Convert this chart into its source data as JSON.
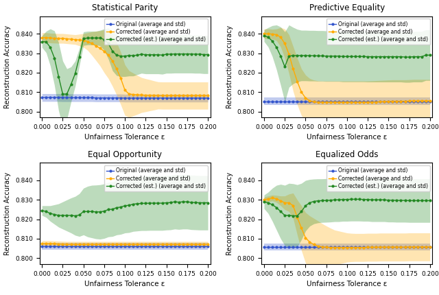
{
  "titles": [
    "Statistical Parity",
    "Predictive Equality",
    "Equal Opportunity",
    "Equalized Odds"
  ],
  "xlabel": "Unfairness Tolerance ε",
  "ylabel": "Reconstruction Accuracy",
  "legend_labels": [
    "Original (average and std)",
    "Corrected (average and std)",
    "Corrected (est.) (average and std)"
  ],
  "colors": [
    "#3355cc",
    "#ffaa00",
    "#228822"
  ],
  "x_ticks": [
    0.0,
    0.025,
    0.05,
    0.075,
    0.1,
    0.125,
    0.15,
    0.175,
    0.2
  ],
  "ylim": [
    0.797,
    0.849
  ],
  "xlim": [
    -0.003,
    0.203
  ],
  "sp": {
    "x": [
      0.0,
      0.005,
      0.01,
      0.015,
      0.02,
      0.025,
      0.03,
      0.035,
      0.04,
      0.045,
      0.05,
      0.055,
      0.06,
      0.065,
      0.07,
      0.075,
      0.08,
      0.085,
      0.09,
      0.095,
      0.1,
      0.105,
      0.11,
      0.115,
      0.12,
      0.125,
      0.13,
      0.135,
      0.14,
      0.145,
      0.15,
      0.155,
      0.16,
      0.165,
      0.17,
      0.175,
      0.18,
      0.185,
      0.19,
      0.195,
      0.2
    ],
    "orig_mean": [
      0.8072,
      0.8072,
      0.8072,
      0.8072,
      0.8072,
      0.8071,
      0.8071,
      0.8071,
      0.8071,
      0.8071,
      0.8071,
      0.8071,
      0.8071,
      0.807,
      0.807,
      0.807,
      0.807,
      0.807,
      0.807,
      0.807,
      0.8069,
      0.8069,
      0.8069,
      0.8069,
      0.8069,
      0.8069,
      0.8069,
      0.8069,
      0.8069,
      0.8069,
      0.8069,
      0.8069,
      0.8069,
      0.8069,
      0.8069,
      0.8069,
      0.8069,
      0.8069,
      0.8069,
      0.8069,
      0.8069
    ],
    "orig_std": [
      0.002,
      0.002,
      0.002,
      0.002,
      0.002,
      0.002,
      0.002,
      0.002,
      0.002,
      0.002,
      0.002,
      0.002,
      0.002,
      0.002,
      0.002,
      0.002,
      0.002,
      0.002,
      0.002,
      0.002,
      0.002,
      0.002,
      0.002,
      0.002,
      0.002,
      0.002,
      0.002,
      0.002,
      0.002,
      0.002,
      0.002,
      0.002,
      0.002,
      0.002,
      0.002,
      0.002,
      0.002,
      0.002,
      0.002,
      0.002,
      0.002
    ],
    "corr_mean": [
      0.838,
      0.838,
      0.8378,
      0.8377,
      0.8376,
      0.8376,
      0.8374,
      0.8372,
      0.837,
      0.8368,
      0.8366,
      0.836,
      0.835,
      0.8338,
      0.8325,
      0.831,
      0.829,
      0.826,
      0.822,
      0.817,
      0.811,
      0.809,
      0.8088,
      0.8086,
      0.8085,
      0.8084,
      0.8084,
      0.8083,
      0.8083,
      0.8082,
      0.8082,
      0.8082,
      0.8082,
      0.8082,
      0.8082,
      0.8082,
      0.8082,
      0.8082,
      0.8082,
      0.8082,
      0.8082
    ],
    "corr_std": [
      0.0025,
      0.0025,
      0.0025,
      0.0025,
      0.0025,
      0.0025,
      0.0025,
      0.0025,
      0.0025,
      0.003,
      0.0035,
      0.0045,
      0.006,
      0.0075,
      0.009,
      0.011,
      0.012,
      0.013,
      0.0135,
      0.0135,
      0.013,
      0.012,
      0.011,
      0.01,
      0.009,
      0.0085,
      0.008,
      0.0075,
      0.007,
      0.007,
      0.007,
      0.007,
      0.007,
      0.007,
      0.007,
      0.007,
      0.007,
      0.007,
      0.007,
      0.007,
      0.007
    ],
    "est_mean": [
      0.836,
      0.8358,
      0.833,
      0.8275,
      0.818,
      0.809,
      0.809,
      0.814,
      0.8195,
      0.828,
      0.8375,
      0.8378,
      0.8378,
      0.8378,
      0.8378,
      0.837,
      0.835,
      0.831,
      0.829,
      0.8285,
      0.8285,
      0.8288,
      0.8288,
      0.829,
      0.8295,
      0.8292,
      0.8292,
      0.8292,
      0.8292,
      0.829,
      0.8295,
      0.8295,
      0.8296,
      0.8296,
      0.8296,
      0.8296,
      0.8296,
      0.8295,
      0.8295,
      0.8293,
      0.8293
    ],
    "est_std": [
      0.003,
      0.0055,
      0.0095,
      0.014,
      0.0175,
      0.017,
      0.013,
      0.009,
      0.0065,
      0.0045,
      0.0035,
      0.0035,
      0.0035,
      0.0035,
      0.004,
      0.0055,
      0.008,
      0.01,
      0.0105,
      0.0105,
      0.0105,
      0.0105,
      0.0105,
      0.01,
      0.0098,
      0.0098,
      0.0098,
      0.0098,
      0.0098,
      0.0098,
      0.0098,
      0.0098,
      0.0098,
      0.0098,
      0.0098,
      0.0098,
      0.0098,
      0.0098,
      0.0098,
      0.0098,
      0.0098
    ]
  },
  "pe": {
    "x": [
      0.0,
      0.005,
      0.01,
      0.015,
      0.02,
      0.025,
      0.03,
      0.035,
      0.04,
      0.045,
      0.05,
      0.055,
      0.06,
      0.065,
      0.07,
      0.075,
      0.08,
      0.085,
      0.09,
      0.095,
      0.1,
      0.105,
      0.11,
      0.115,
      0.12,
      0.125,
      0.13,
      0.135,
      0.14,
      0.145,
      0.15,
      0.155,
      0.16,
      0.165,
      0.17,
      0.175,
      0.18,
      0.185,
      0.19,
      0.195,
      0.2
    ],
    "orig_mean": [
      0.8053,
      0.8053,
      0.8053,
      0.8053,
      0.8053,
      0.8053,
      0.8053,
      0.8053,
      0.8053,
      0.8053,
      0.8053,
      0.8053,
      0.8053,
      0.8053,
      0.8053,
      0.8053,
      0.8053,
      0.8053,
      0.8053,
      0.8053,
      0.8053,
      0.8053,
      0.8053,
      0.8053,
      0.8053,
      0.8053,
      0.8053,
      0.8053,
      0.8053,
      0.8053,
      0.8053,
      0.8053,
      0.8053,
      0.8053,
      0.8053,
      0.8053,
      0.8053,
      0.8053,
      0.8053,
      0.8053,
      0.8053
    ],
    "orig_std": [
      0.002,
      0.002,
      0.002,
      0.002,
      0.002,
      0.002,
      0.002,
      0.002,
      0.002,
      0.002,
      0.002,
      0.002,
      0.002,
      0.002,
      0.002,
      0.002,
      0.002,
      0.002,
      0.002,
      0.002,
      0.002,
      0.002,
      0.002,
      0.002,
      0.002,
      0.002,
      0.002,
      0.002,
      0.002,
      0.002,
      0.002,
      0.002,
      0.002,
      0.002,
      0.002,
      0.002,
      0.002,
      0.002,
      0.002,
      0.002,
      0.002
    ],
    "corr_mean": [
      0.84,
      0.84,
      0.8398,
      0.8395,
      0.8382,
      0.835,
      0.8295,
      0.822,
      0.8155,
      0.81,
      0.807,
      0.8055,
      0.805,
      0.8048,
      0.8047,
      0.8047,
      0.8047,
      0.8047,
      0.8047,
      0.8047,
      0.8047,
      0.8047,
      0.8047,
      0.8047,
      0.8047,
      0.8047,
      0.8048,
      0.8049,
      0.805,
      0.8051,
      0.8052,
      0.8053,
      0.8053,
      0.8053,
      0.8053,
      0.8054,
      0.8055,
      0.8055,
      0.8055,
      0.8055,
      0.8055
    ],
    "corr_std": [
      0.0025,
      0.0025,
      0.0025,
      0.003,
      0.005,
      0.0075,
      0.01,
      0.0115,
      0.012,
      0.012,
      0.0118,
      0.0115,
      0.0112,
      0.011,
      0.011,
      0.011,
      0.011,
      0.011,
      0.011,
      0.011,
      0.011,
      0.011,
      0.011,
      0.011,
      0.011,
      0.011,
      0.011,
      0.011,
      0.011,
      0.011,
      0.011,
      0.011,
      0.011,
      0.011,
      0.011,
      0.011,
      0.011,
      0.011,
      0.011,
      0.011,
      0.011
    ],
    "est_mean": [
      0.839,
      0.8382,
      0.8362,
      0.833,
      0.8285,
      0.823,
      0.8285,
      0.8288,
      0.8288,
      0.8288,
      0.8288,
      0.8287,
      0.8287,
      0.8286,
      0.8286,
      0.8285,
      0.8285,
      0.8285,
      0.8285,
      0.8283,
      0.8283,
      0.8283,
      0.8283,
      0.8283,
      0.8283,
      0.8282,
      0.8282,
      0.8282,
      0.8282,
      0.8282,
      0.8282,
      0.8282,
      0.8282,
      0.8282,
      0.828,
      0.828,
      0.8282,
      0.8282,
      0.8282,
      0.829,
      0.829
    ],
    "est_std": [
      0.003,
      0.005,
      0.008,
      0.0115,
      0.015,
      0.018,
      0.016,
      0.0145,
      0.0135,
      0.013,
      0.013,
      0.013,
      0.013,
      0.013,
      0.013,
      0.013,
      0.013,
      0.013,
      0.013,
      0.013,
      0.013,
      0.013,
      0.013,
      0.013,
      0.013,
      0.013,
      0.013,
      0.013,
      0.013,
      0.013,
      0.013,
      0.013,
      0.013,
      0.013,
      0.013,
      0.013,
      0.013,
      0.013,
      0.013,
      0.013,
      0.013
    ]
  },
  "eo": {
    "x": [
      0.0,
      0.005,
      0.01,
      0.015,
      0.02,
      0.025,
      0.03,
      0.035,
      0.04,
      0.045,
      0.05,
      0.055,
      0.06,
      0.065,
      0.07,
      0.075,
      0.08,
      0.085,
      0.09,
      0.095,
      0.1,
      0.105,
      0.11,
      0.115,
      0.12,
      0.125,
      0.13,
      0.135,
      0.14,
      0.145,
      0.15,
      0.155,
      0.16,
      0.165,
      0.17,
      0.175,
      0.18,
      0.185,
      0.19,
      0.195,
      0.2
    ],
    "orig_mean": [
      0.806,
      0.806,
      0.806,
      0.806,
      0.806,
      0.806,
      0.806,
      0.806,
      0.806,
      0.806,
      0.806,
      0.806,
      0.806,
      0.806,
      0.806,
      0.806,
      0.806,
      0.806,
      0.806,
      0.806,
      0.806,
      0.806,
      0.806,
      0.806,
      0.806,
      0.806,
      0.806,
      0.806,
      0.806,
      0.806,
      0.806,
      0.806,
      0.806,
      0.806,
      0.806,
      0.806,
      0.806,
      0.806,
      0.806,
      0.806,
      0.806
    ],
    "orig_std": [
      0.0018,
      0.0018,
      0.0018,
      0.0018,
      0.0018,
      0.0018,
      0.0018,
      0.0018,
      0.0018,
      0.0018,
      0.0018,
      0.0018,
      0.0018,
      0.0018,
      0.0018,
      0.0018,
      0.0018,
      0.0018,
      0.0018,
      0.0018,
      0.0018,
      0.0018,
      0.0018,
      0.0018,
      0.0018,
      0.0018,
      0.0018,
      0.0018,
      0.0018,
      0.0018,
      0.0018,
      0.0018,
      0.0018,
      0.0018,
      0.0018,
      0.0018,
      0.0018,
      0.0018,
      0.0018,
      0.0018,
      0.0018
    ],
    "corr_mean": [
      0.8075,
      0.8075,
      0.8075,
      0.8074,
      0.8073,
      0.8072,
      0.8071,
      0.8071,
      0.8071,
      0.8071,
      0.8071,
      0.8071,
      0.8071,
      0.8071,
      0.8071,
      0.8071,
      0.8071,
      0.8071,
      0.8071,
      0.8071,
      0.8071,
      0.8071,
      0.8071,
      0.8071,
      0.8071,
      0.8071,
      0.8071,
      0.8071,
      0.8071,
      0.8071,
      0.8071,
      0.8071,
      0.8071,
      0.8071,
      0.8071,
      0.8071,
      0.8071,
      0.8071,
      0.8071,
      0.8071,
      0.8071
    ],
    "corr_std": [
      0.0015,
      0.0015,
      0.0015,
      0.0015,
      0.0015,
      0.0015,
      0.0015,
      0.0015,
      0.0015,
      0.0015,
      0.0015,
      0.0015,
      0.0015,
      0.0015,
      0.0015,
      0.0015,
      0.0015,
      0.0015,
      0.0015,
      0.0015,
      0.0015,
      0.0015,
      0.0015,
      0.0015,
      0.0015,
      0.0015,
      0.0015,
      0.0015,
      0.0015,
      0.0015,
      0.0015,
      0.0015,
      0.0015,
      0.0015,
      0.0015,
      0.0015,
      0.0015,
      0.0015,
      0.0015,
      0.0015,
      0.0015
    ],
    "est_mean": [
      0.8245,
      0.824,
      0.823,
      0.8225,
      0.822,
      0.822,
      0.822,
      0.822,
      0.8218,
      0.8222,
      0.824,
      0.824,
      0.824,
      0.8238,
      0.8238,
      0.8242,
      0.825,
      0.8252,
      0.826,
      0.8263,
      0.827,
      0.8272,
      0.8278,
      0.828,
      0.8282,
      0.8282,
      0.8283,
      0.8283,
      0.8283,
      0.8283,
      0.8285,
      0.8286,
      0.829,
      0.8288,
      0.829,
      0.829,
      0.8287,
      0.8286,
      0.8285,
      0.8285,
      0.8285
    ],
    "est_std": [
      0.0025,
      0.003,
      0.004,
      0.005,
      0.006,
      0.007,
      0.008,
      0.009,
      0.01,
      0.011,
      0.012,
      0.013,
      0.0135,
      0.0138,
      0.014,
      0.014,
      0.014,
      0.014,
      0.014,
      0.014,
      0.014,
      0.014,
      0.014,
      0.014,
      0.014,
      0.014,
      0.014,
      0.014,
      0.014,
      0.014,
      0.014,
      0.014,
      0.014,
      0.014,
      0.014,
      0.014,
      0.014,
      0.014,
      0.014,
      0.014,
      0.014
    ]
  },
  "eqodds": {
    "x": [
      0.0,
      0.005,
      0.01,
      0.015,
      0.02,
      0.025,
      0.03,
      0.035,
      0.04,
      0.045,
      0.05,
      0.055,
      0.06,
      0.065,
      0.07,
      0.075,
      0.08,
      0.085,
      0.09,
      0.095,
      0.1,
      0.105,
      0.11,
      0.115,
      0.12,
      0.125,
      0.13,
      0.135,
      0.14,
      0.145,
      0.15,
      0.155,
      0.16,
      0.165,
      0.17,
      0.175,
      0.18,
      0.185,
      0.19,
      0.195,
      0.2
    ],
    "orig_mean": [
      0.8058,
      0.8058,
      0.8058,
      0.8058,
      0.8058,
      0.8058,
      0.8058,
      0.8058,
      0.8058,
      0.8058,
      0.8058,
      0.8058,
      0.8058,
      0.8058,
      0.8058,
      0.8058,
      0.8058,
      0.8058,
      0.8058,
      0.8058,
      0.8058,
      0.8058,
      0.8058,
      0.8058,
      0.8058,
      0.8058,
      0.8058,
      0.8058,
      0.8058,
      0.8058,
      0.8058,
      0.8058,
      0.8058,
      0.8058,
      0.8058,
      0.8058,
      0.8058,
      0.8058,
      0.8058,
      0.8058,
      0.8058
    ],
    "orig_std": [
      0.0018,
      0.0018,
      0.0018,
      0.0018,
      0.0018,
      0.0018,
      0.0018,
      0.0018,
      0.0018,
      0.0018,
      0.0018,
      0.0018,
      0.0018,
      0.0018,
      0.0018,
      0.0018,
      0.0018,
      0.0018,
      0.0018,
      0.0018,
      0.0018,
      0.0018,
      0.0018,
      0.0018,
      0.0018,
      0.0018,
      0.0018,
      0.0018,
      0.0018,
      0.0018,
      0.0018,
      0.0018,
      0.0018,
      0.0018,
      0.0018,
      0.0018,
      0.0018,
      0.0018,
      0.0018,
      0.0018,
      0.0018
    ],
    "corr_mean": [
      0.83,
      0.8305,
      0.831,
      0.8305,
      0.8295,
      0.8285,
      0.8285,
      0.827,
      0.821,
      0.8155,
      0.8105,
      0.8083,
      0.807,
      0.8062,
      0.8058,
      0.8056,
      0.8055,
      0.8055,
      0.8055,
      0.8055,
      0.8055,
      0.8055,
      0.8055,
      0.8055,
      0.8055,
      0.8056,
      0.8056,
      0.8056,
      0.8057,
      0.8057,
      0.8057,
      0.8057,
      0.8057,
      0.8057,
      0.8057,
      0.8058,
      0.8058,
      0.8058,
      0.8058,
      0.8058,
      0.8058
    ],
    "corr_std": [
      0.0015,
      0.0015,
      0.0015,
      0.0018,
      0.0025,
      0.0035,
      0.0045,
      0.0065,
      0.009,
      0.0115,
      0.013,
      0.0135,
      0.0135,
      0.013,
      0.012,
      0.011,
      0.01,
      0.009,
      0.0085,
      0.008,
      0.0075,
      0.0073,
      0.0072,
      0.0072,
      0.0072,
      0.0072,
      0.0072,
      0.0072,
      0.0072,
      0.0072,
      0.0072,
      0.0072,
      0.0072,
      0.0072,
      0.0072,
      0.0072,
      0.0072,
      0.0072,
      0.0072,
      0.0072,
      0.0072
    ],
    "est_mean": [
      0.829,
      0.8285,
      0.8275,
      0.826,
      0.824,
      0.822,
      0.822,
      0.8218,
      0.8218,
      0.824,
      0.827,
      0.8285,
      0.8292,
      0.8295,
      0.8296,
      0.8297,
      0.8298,
      0.83,
      0.83,
      0.8302,
      0.8302,
      0.8303,
      0.8303,
      0.8303,
      0.8302,
      0.8302,
      0.83,
      0.83,
      0.83,
      0.83,
      0.8298,
      0.8298,
      0.8297,
      0.8297,
      0.8297,
      0.8296,
      0.8296,
      0.8296,
      0.8296,
      0.8296,
      0.8296
    ],
    "est_std": [
      0.0035,
      0.0055,
      0.0085,
      0.0115,
      0.014,
      0.0155,
      0.0165,
      0.0165,
      0.016,
      0.0145,
      0.013,
      0.012,
      0.0115,
      0.0113,
      0.0112,
      0.0112,
      0.0112,
      0.0112,
      0.0112,
      0.0112,
      0.0112,
      0.0112,
      0.0112,
      0.0112,
      0.0112,
      0.0112,
      0.0112,
      0.0112,
      0.0112,
      0.0112,
      0.0112,
      0.0112,
      0.0112,
      0.0112,
      0.0112,
      0.0112,
      0.0112,
      0.0112,
      0.0112,
      0.0112,
      0.0112
    ]
  }
}
